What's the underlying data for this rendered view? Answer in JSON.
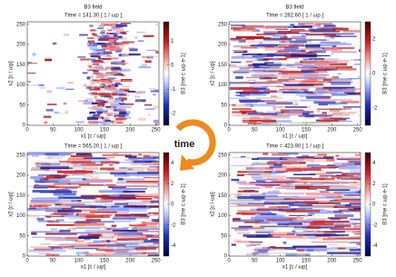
{
  "chart_data": [
    {
      "type": "heatmap",
      "title": "B3 field",
      "subtitle": "Time = 141.30 [ 1 / ωp ]",
      "xlabel": "x1 [c / ωp]",
      "ylabel": "x2 [c / ωp]",
      "colorbar_label": "B3 [me c ωp e-1]",
      "xlim": [
        0,
        256
      ],
      "xticks": [
        0,
        50,
        100,
        150,
        200,
        250
      ],
      "ylim": [
        0,
        256
      ],
      "yticks": [
        0,
        50,
        100,
        150,
        200,
        250
      ],
      "clim": [
        -2.5,
        1.8
      ],
      "cticks": [
        -2,
        -1,
        0,
        1
      ]
    },
    {
      "type": "heatmap",
      "title": "B3 field",
      "subtitle": "Time = 282.60 [ 1 / ωp ]",
      "xlabel": "x1 [c / ωp]",
      "ylabel": "x2 [c / ωp]",
      "colorbar_label": "B3 [me c ωp e-1]",
      "xlim": [
        0,
        256
      ],
      "xticks": [
        0,
        50,
        100,
        150,
        200,
        250
      ],
      "ylim": [
        0,
        256
      ],
      "yticks": [
        0,
        50,
        100,
        150,
        200,
        250
      ],
      "clim": [
        -3,
        3
      ],
      "cticks": [
        -2,
        0,
        2
      ]
    },
    {
      "type": "heatmap",
      "subtitle": "Time = 565.20 [ 1 / ωp ]",
      "xlabel": "x1 [c / ωp]",
      "ylabel": "x2 [c / ωp]",
      "colorbar_label": "B3 [me c ωp e-1]",
      "xlim": [
        0,
        256
      ],
      "xticks": [
        0,
        50,
        100,
        150,
        200,
        250
      ],
      "ylim": [
        0,
        256
      ],
      "yticks": [
        0,
        50,
        100,
        150,
        200,
        250
      ],
      "clim": [
        -5,
        5
      ],
      "cticks": [
        -4,
        -2,
        0,
        2,
        4
      ]
    },
    {
      "type": "heatmap",
      "subtitle": "Time = 423.90 [ 1 / ωp ]",
      "xlabel": "x1 [c / ωp]",
      "ylabel": "x2 [c / ωp]",
      "colorbar_label": "B3 [me c ωp e-1]",
      "xlim": [
        0,
        256
      ],
      "xticks": [
        0,
        50,
        100,
        150,
        200,
        250
      ],
      "ylim": [
        0,
        256
      ],
      "yticks": [
        0,
        50,
        100,
        150,
        200,
        250
      ],
      "clim": [
        -5,
        5
      ],
      "cticks": [
        -4,
        -2,
        0,
        2,
        4
      ]
    }
  ],
  "center_label": "time"
}
